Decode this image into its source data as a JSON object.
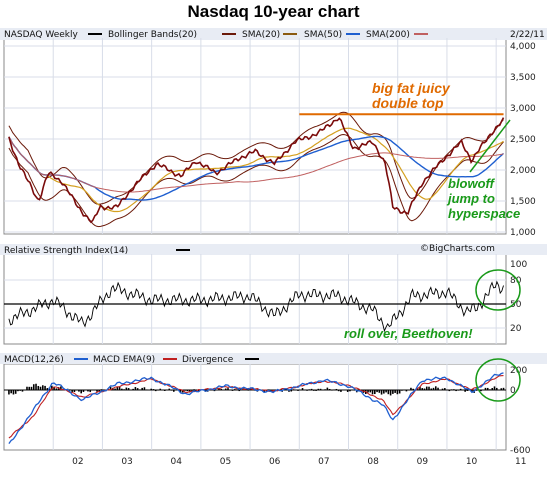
{
  "title": "Nasdaq 10-year chart",
  "colors": {
    "price": "#7a0a0a",
    "bollinger": "#6b1a0a",
    "sma20": "#8a5a10",
    "sma50": "#d4a020",
    "sma200": "#1f5fd0",
    "sma_long": "#c06060",
    "annotation_orange": "#e06a00",
    "annotation_green": "#1a9a1a",
    "macd": "#1f5fd0",
    "ema": "#c02020",
    "divergence": "#000000"
  },
  "legend": {
    "main": [
      "NASDAQ Weekly",
      "Bollinger Bands(20)",
      "SMA(20)",
      "SMA(50)",
      "SMA(200)"
    ],
    "date": "2/22/11",
    "rsi": "Relative Strength Index(14)",
    "macd": [
      "MACD(12,26)",
      "MACD EMA(9)",
      "Divergence"
    ]
  },
  "watermark": "©BigCharts.com",
  "annotations": {
    "top": "big fat juicy double top",
    "blowoff": "blowoff jump to hyperspace",
    "rollover": "roll over, Beethoven!"
  },
  "chart_data": [
    {
      "type": "line",
      "title": "NASDAQ Weekly",
      "x": [
        2001.1,
        2001.3,
        2001.7,
        2001.9,
        2002.2,
        2002.5,
        2002.8,
        2002.95,
        2003.3,
        2003.6,
        2003.9,
        2004.1,
        2004.6,
        2004.9,
        2005.3,
        2005.8,
        2006.1,
        2006.5,
        2006.9,
        2007.4,
        2007.8,
        2008.1,
        2008.5,
        2008.75,
        2008.9,
        2009.2,
        2009.5,
        2009.9,
        2010.3,
        2010.5,
        2010.9,
        2011.15
      ],
      "values": [
        2500,
        2100,
        1500,
        1950,
        1800,
        1400,
        1150,
        1400,
        1400,
        1700,
        1950,
        2100,
        1900,
        2150,
        1950,
        2200,
        2300,
        2100,
        2450,
        2600,
        2850,
        2350,
        2450,
        2100,
        1400,
        1300,
        1800,
        2150,
        2450,
        2150,
        2600,
        2800
      ],
      "ylim": [
        1000,
        4000
      ],
      "yticks": [
        "1,000",
        "1,500",
        "2,000",
        "2,500",
        "3,000",
        "3,500",
        "4,000"
      ],
      "xticks": [
        "02",
        "03",
        "04",
        "05",
        "06",
        "07",
        "08",
        "09",
        "10",
        "11"
      ],
      "reference_line": 2900
    },
    {
      "type": "line",
      "title": "Relative Strength Index(14)",
      "ylim": [
        0,
        100
      ],
      "yticks": [
        "20",
        "50",
        "80",
        "100"
      ],
      "reference_line": 50,
      "x": [
        2001.1,
        2002.0,
        2002.6,
        2003.2,
        2004.0,
        2005.0,
        2006.0,
        2006.5,
        2007.0,
        2007.8,
        2008.5,
        2008.8,
        2009.3,
        2010.0,
        2010.4,
        2010.6,
        2011.0,
        2011.15
      ],
      "values": [
        30,
        55,
        25,
        70,
        55,
        55,
        60,
        35,
        62,
        60,
        42,
        20,
        60,
        65,
        40,
        45,
        75,
        70
      ]
    },
    {
      "type": "line",
      "title": "MACD(12,26)",
      "ylim": [
        -600,
        200
      ],
      "yticks": [
        "-600",
        "0",
        "200"
      ],
      "x": [
        2001.1,
        2001.6,
        2002.0,
        2002.6,
        2003.3,
        2004.0,
        2004.7,
        2005.5,
        2006.5,
        2007.5,
        2008.0,
        2008.7,
        2008.9,
        2009.5,
        2010.0,
        2010.5,
        2011.0,
        2011.15
      ],
      "series": [
        {
          "name": "MACD(12,26)",
          "values": [
            -550,
            -200,
            80,
            -100,
            60,
            120,
            -40,
            40,
            -20,
            100,
            40,
            -150,
            -300,
            100,
            120,
            -20,
            150,
            170
          ]
        },
        {
          "name": "MACD EMA(9)",
          "values": [
            -480,
            -260,
            40,
            -70,
            30,
            110,
            -20,
            30,
            -10,
            90,
            50,
            -100,
            -250,
            60,
            110,
            0,
            120,
            150
          ]
        }
      ]
    }
  ]
}
